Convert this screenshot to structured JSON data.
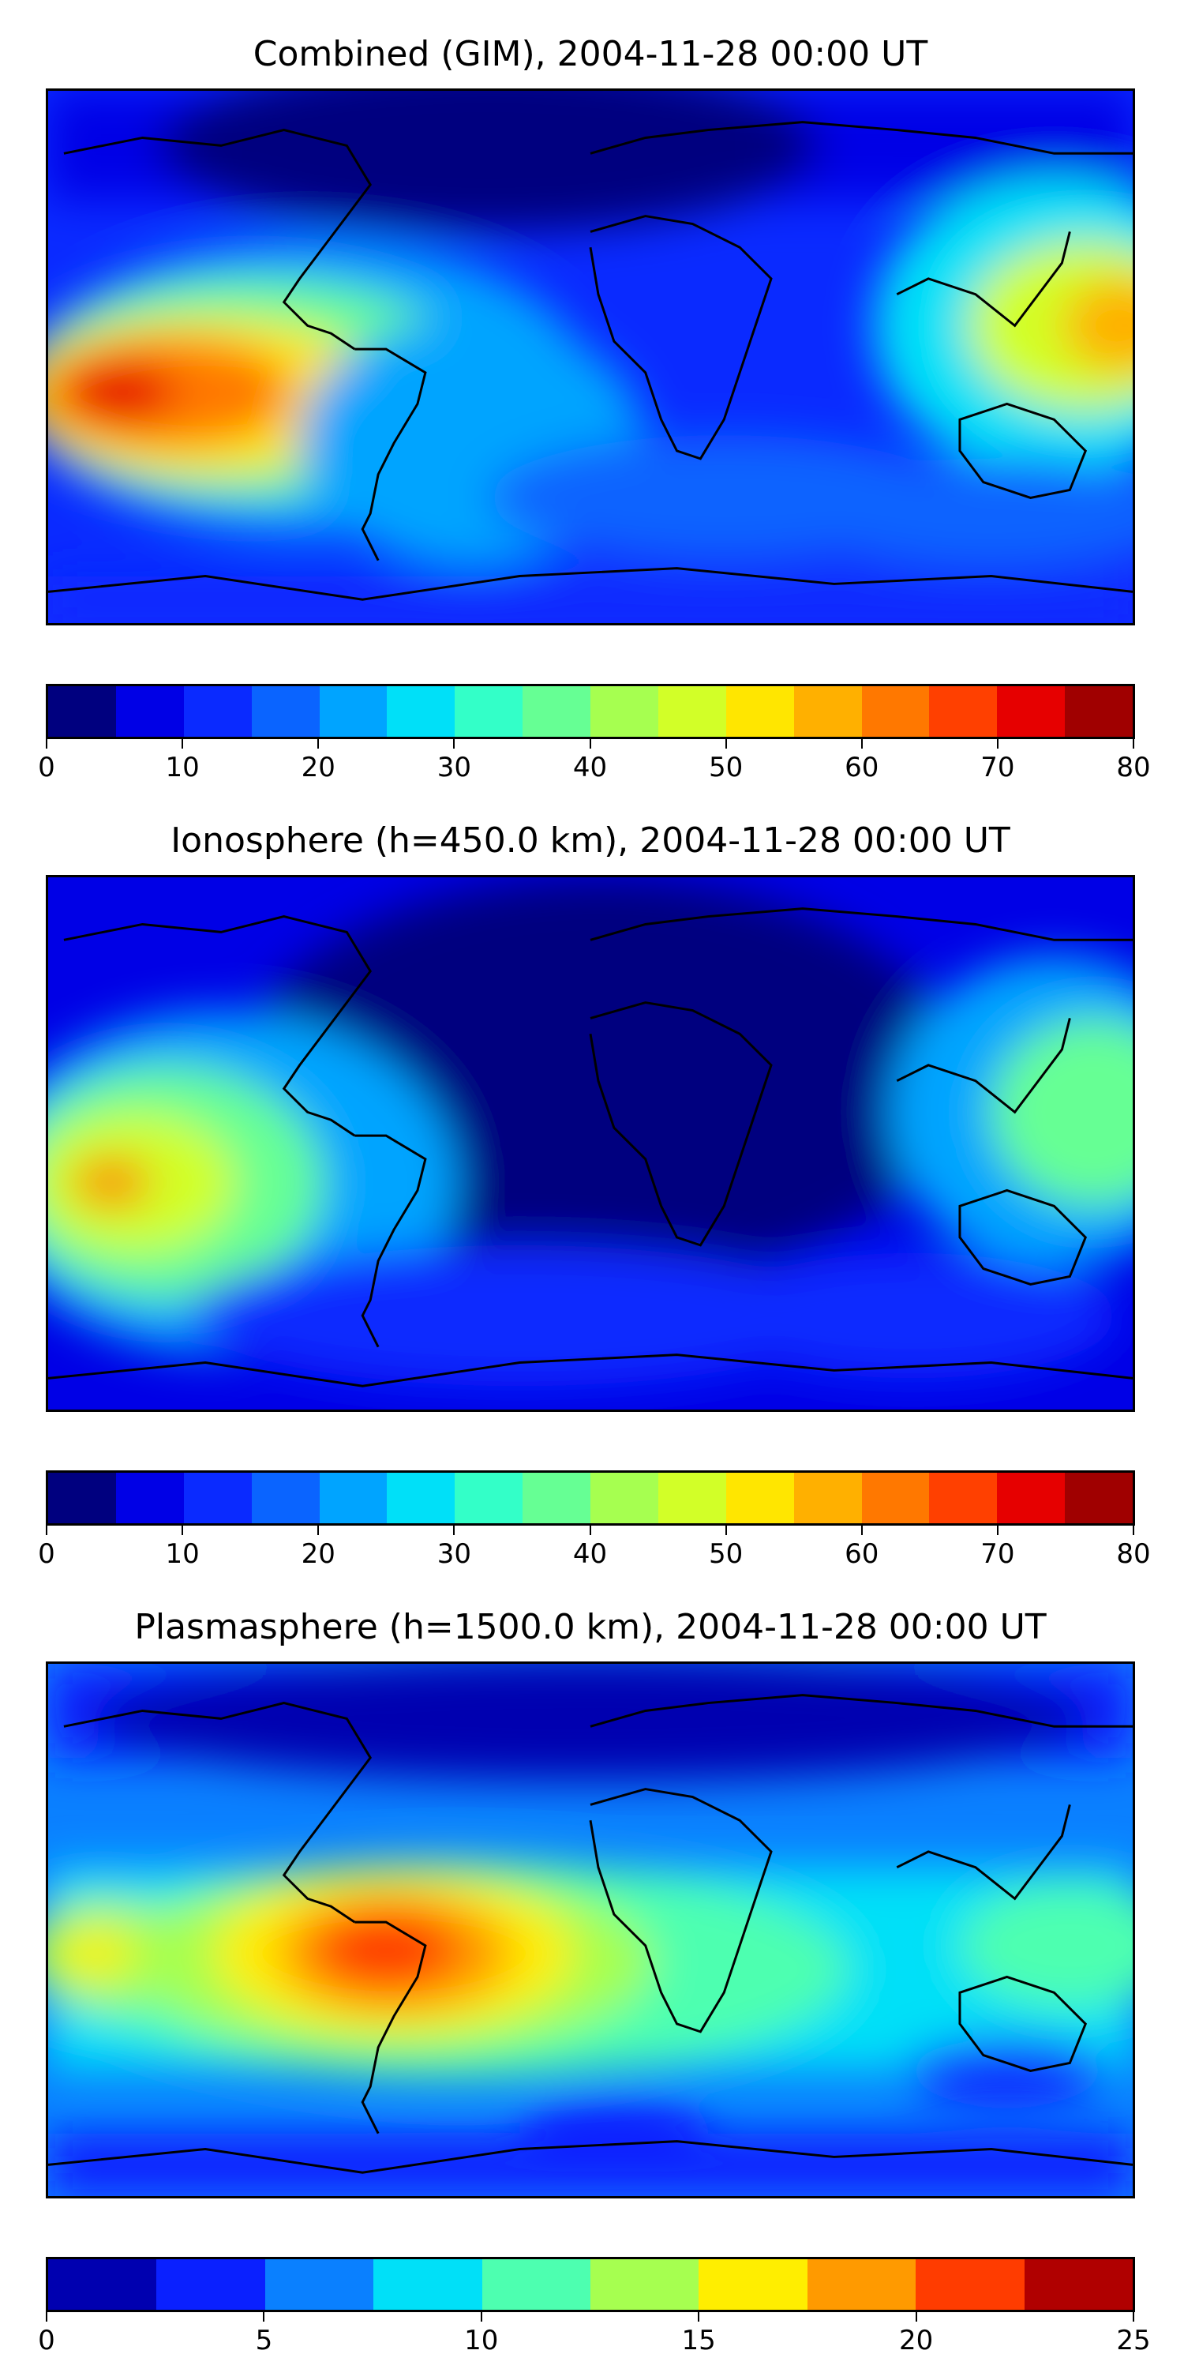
{
  "panels": [
    {
      "title": "Combined (GIM), 2004-11-28 00:00 UT",
      "colorbar": {
        "colors": [
          "#00007f",
          "#0000e6",
          "#0a2aff",
          "#0a64ff",
          "#00a4ff",
          "#00e0f8",
          "#33ffc8",
          "#66ff94",
          "#a6ff50",
          "#d2ff28",
          "#ffe600",
          "#ffb000",
          "#ff7800",
          "#ff4000",
          "#e60000",
          "#a00000"
        ],
        "ticks": [
          "0",
          "10",
          "20",
          "30",
          "40",
          "50",
          "60",
          "70",
          "80"
        ]
      }
    },
    {
      "title": "Ionosphere  (h=450.0 km), 2004-11-28 00:00 UT",
      "colorbar": {
        "colors": [
          "#00007f",
          "#0000e6",
          "#0a2aff",
          "#0a64ff",
          "#00a4ff",
          "#00e0f8",
          "#33ffc8",
          "#66ff94",
          "#a6ff50",
          "#d2ff28",
          "#ffe600",
          "#ffb000",
          "#ff7800",
          "#ff4000",
          "#e60000",
          "#a00000"
        ],
        "ticks": [
          "0",
          "10",
          "20",
          "30",
          "40",
          "50",
          "60",
          "70",
          "80"
        ]
      }
    },
    {
      "title": "Plasmasphere (h=1500.0 km), 2004-11-28 00:00 UT",
      "colorbar": {
        "colors": [
          "#0000b0",
          "#0a20ff",
          "#0a80ff",
          "#00e0f8",
          "#4dffb0",
          "#a6ff50",
          "#ffee00",
          "#ff9a00",
          "#ff3c00",
          "#b00000"
        ],
        "ticks": [
          "0",
          "5",
          "10",
          "15",
          "20",
          "25"
        ]
      }
    }
  ]
}
